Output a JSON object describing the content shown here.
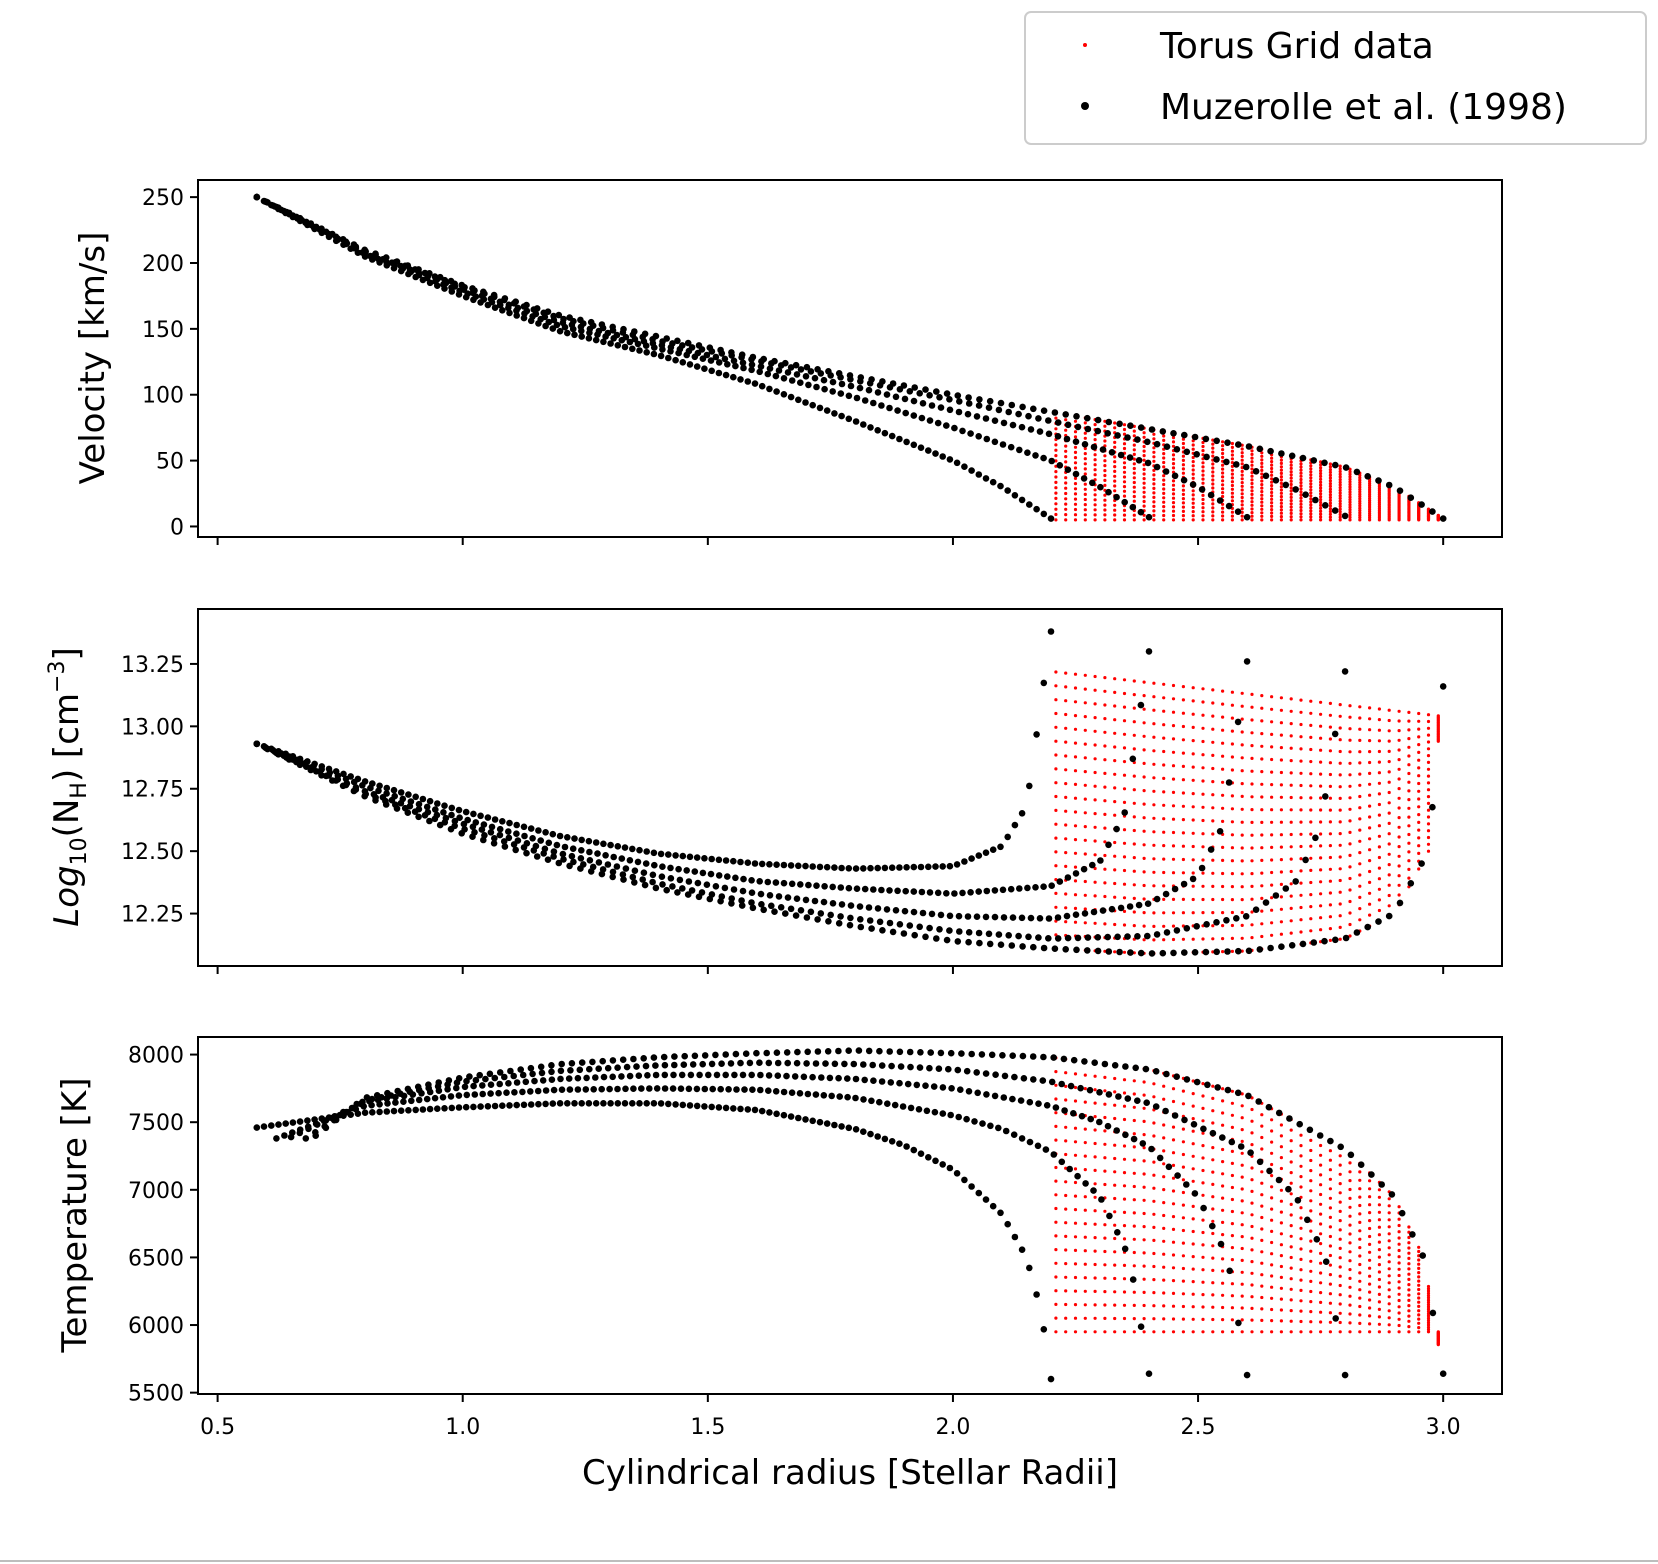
{
  "legend": {
    "entries": [
      {
        "label": "Torus Grid data",
        "color": "#ff0000",
        "marker": "small-dot"
      },
      {
        "label": "Muzerolle et al. (1998)",
        "color": "#000000",
        "marker": "dot"
      }
    ],
    "placement": "top-right, above panels"
  },
  "chart_data": [
    {
      "type": "scatter",
      "panel": "velocity",
      "ylabel": "Velocity [km/s]",
      "xlim": [
        0.46,
        3.12
      ],
      "ylim": [
        -8,
        263
      ],
      "xticks": [
        0.5,
        1.0,
        1.5,
        2.0,
        2.5,
        3.0
      ],
      "xtick_labels_shown": false,
      "yticks": [
        0,
        50,
        100,
        150,
        200,
        250
      ],
      "ytick_labels": [
        "0",
        "50",
        "100",
        "150",
        "200",
        "250"
      ],
      "grid": false,
      "muzerolle_curves": [
        {
          "r_out": 2.2,
          "points": [
            [
              0.58,
              250
            ],
            [
              0.8,
              205
            ],
            [
              1.0,
              175
            ],
            [
              1.2,
              148
            ],
            [
              1.4,
              130
            ],
            [
              1.6,
              108
            ],
            [
              1.8,
              80
            ],
            [
              2.0,
              50
            ],
            [
              2.1,
              30
            ],
            [
              2.2,
              6
            ]
          ]
        },
        {
          "r_out": 2.4,
          "points": [
            [
              0.58,
              250
            ],
            [
              0.8,
              207
            ],
            [
              1.0,
              178
            ],
            [
              1.2,
              152
            ],
            [
              1.4,
              135
            ],
            [
              1.6,
              118
            ],
            [
              1.8,
              98
            ],
            [
              2.0,
              75
            ],
            [
              2.2,
              50
            ],
            [
              2.3,
              30
            ],
            [
              2.4,
              7
            ]
          ]
        },
        {
          "r_out": 2.6,
          "points": [
            [
              0.58,
              250
            ],
            [
              0.8,
              208
            ],
            [
              1.0,
              180
            ],
            [
              1.2,
              155
            ],
            [
              1.4,
              138
            ],
            [
              1.6,
              122
            ],
            [
              1.8,
              106
            ],
            [
              2.0,
              88
            ],
            [
              2.2,
              70
            ],
            [
              2.4,
              48
            ],
            [
              2.5,
              30
            ],
            [
              2.6,
              7
            ]
          ]
        },
        {
          "r_out": 2.8,
          "points": [
            [
              0.58,
              250
            ],
            [
              0.8,
              209
            ],
            [
              1.0,
              182
            ],
            [
              1.2,
              158
            ],
            [
              1.4,
              141
            ],
            [
              1.6,
              126
            ],
            [
              1.8,
              111
            ],
            [
              2.0,
              96
            ],
            [
              2.2,
              80
            ],
            [
              2.4,
              64
            ],
            [
              2.6,
              45
            ],
            [
              2.7,
              28
            ],
            [
              2.8,
              8
            ]
          ]
        },
        {
          "r_out": 3.0,
          "points": [
            [
              0.58,
              250
            ],
            [
              0.8,
              210
            ],
            [
              1.0,
              183
            ],
            [
              1.2,
              160
            ],
            [
              1.4,
              144
            ],
            [
              1.6,
              128
            ],
            [
              1.8,
              114
            ],
            [
              2.0,
              100
            ],
            [
              2.2,
              87
            ],
            [
              2.4,
              74
            ],
            [
              2.6,
              61
            ],
            [
              2.8,
              45
            ],
            [
              2.9,
              30
            ],
            [
              3.0,
              6
            ]
          ]
        }
      ],
      "torus_grid": {
        "x_range": [
          2.2,
          3.0
        ],
        "y_bottom": 5,
        "fills_under_curves": true
      }
    },
    {
      "type": "scatter",
      "panel": "density",
      "ylabel": "Log10(NH) [cm-3]",
      "xlim": [
        0.46,
        3.12
      ],
      "ylim": [
        12.04,
        13.47
      ],
      "xticks": [
        0.5,
        1.0,
        1.5,
        2.0,
        2.5,
        3.0
      ],
      "xtick_labels_shown": false,
      "yticks": [
        12.25,
        12.5,
        12.75,
        13.0,
        13.25
      ],
      "ytick_labels": [
        "12.25",
        "12.50",
        "12.75",
        "13.00",
        "13.25"
      ],
      "grid": false,
      "muzerolle_curves": [
        {
          "r_out": 2.2,
          "points": [
            [
              0.58,
              12.93
            ],
            [
              0.8,
              12.78
            ],
            [
              1.0,
              12.66
            ],
            [
              1.2,
              12.56
            ],
            [
              1.4,
              12.49
            ],
            [
              1.6,
              12.45
            ],
            [
              1.8,
              12.43
            ],
            [
              2.0,
              12.44
            ],
            [
              2.1,
              12.52
            ],
            [
              2.15,
              12.68
            ],
            [
              2.2,
              13.38
            ]
          ]
        },
        {
          "r_out": 2.4,
          "points": [
            [
              0.58,
              12.93
            ],
            [
              0.8,
              12.76
            ],
            [
              1.0,
              12.63
            ],
            [
              1.2,
              12.52
            ],
            [
              1.4,
              12.44
            ],
            [
              1.6,
              12.38
            ],
            [
              1.8,
              12.35
            ],
            [
              2.0,
              12.33
            ],
            [
              2.2,
              12.36
            ],
            [
              2.3,
              12.46
            ],
            [
              2.35,
              12.65
            ],
            [
              2.4,
              13.3
            ]
          ]
        },
        {
          "r_out": 2.6,
          "points": [
            [
              0.58,
              12.93
            ],
            [
              0.8,
              12.74
            ],
            [
              1.0,
              12.61
            ],
            [
              1.2,
              12.49
            ],
            [
              1.4,
              12.4
            ],
            [
              1.6,
              12.33
            ],
            [
              1.8,
              12.28
            ],
            [
              2.0,
              12.24
            ],
            [
              2.2,
              12.23
            ],
            [
              2.4,
              12.29
            ],
            [
              2.5,
              12.4
            ],
            [
              2.55,
              12.6
            ],
            [
              2.6,
              13.26
            ]
          ]
        },
        {
          "r_out": 2.8,
          "points": [
            [
              0.58,
              12.93
            ],
            [
              0.8,
              12.73
            ],
            [
              1.0,
              12.59
            ],
            [
              1.2,
              12.47
            ],
            [
              1.4,
              12.37
            ],
            [
              1.6,
              12.29
            ],
            [
              1.8,
              12.23
            ],
            [
              2.0,
              12.18
            ],
            [
              2.2,
              12.15
            ],
            [
              2.4,
              12.16
            ],
            [
              2.6,
              12.24
            ],
            [
              2.7,
              12.38
            ],
            [
              2.75,
              12.6
            ],
            [
              2.8,
              13.22
            ]
          ]
        },
        {
          "r_out": 3.0,
          "points": [
            [
              0.58,
              12.93
            ],
            [
              0.8,
              12.72
            ],
            [
              1.0,
              12.57
            ],
            [
              1.2,
              12.45
            ],
            [
              1.4,
              12.35
            ],
            [
              1.6,
              12.27
            ],
            [
              1.8,
              12.2
            ],
            [
              2.0,
              12.14
            ],
            [
              2.2,
              12.11
            ],
            [
              2.4,
              12.09
            ],
            [
              2.6,
              12.1
            ],
            [
              2.8,
              12.15
            ],
            [
              2.9,
              12.25
            ],
            [
              2.97,
              12.5
            ],
            [
              3.0,
              13.16
            ]
          ]
        }
      ],
      "torus_grid": {
        "x_range": [
          2.2,
          3.0
        ],
        "y_top_left": 13.22,
        "y_top_right": 13.04,
        "y_bottom": 12.09
      }
    },
    {
      "type": "scatter",
      "panel": "temperature",
      "ylabel": "Temperature [K]",
      "xlabel": "Cylindrical radius [Stellar Radii]",
      "xlim": [
        0.46,
        3.12
      ],
      "ylim": [
        5490,
        8130
      ],
      "xticks": [
        0.5,
        1.0,
        1.5,
        2.0,
        2.5,
        3.0
      ],
      "xtick_labels": [
        "0.5",
        "1.0",
        "1.5",
        "2.0",
        "2.5",
        "3.0"
      ],
      "yticks": [
        5500,
        6000,
        6500,
        7000,
        7500,
        8000
      ],
      "ytick_labels": [
        "5500",
        "6000",
        "6500",
        "7000",
        "7500",
        "8000"
      ],
      "grid": false,
      "muzerolle_curves": [
        {
          "r_out": 2.2,
          "points": [
            [
              0.58,
              7460
            ],
            [
              0.8,
              7570
            ],
            [
              1.0,
              7610
            ],
            [
              1.2,
              7640
            ],
            [
              1.4,
              7640
            ],
            [
              1.6,
              7590
            ],
            [
              1.8,
              7450
            ],
            [
              1.9,
              7330
            ],
            [
              2.0,
              7150
            ],
            [
              2.1,
              6820
            ],
            [
              2.15,
              6500
            ],
            [
              2.18,
              6100
            ],
            [
              2.2,
              5600
            ]
          ]
        },
        {
          "r_out": 2.4,
          "points": [
            [
              0.62,
              7380
            ],
            [
              0.8,
              7620
            ],
            [
              1.0,
              7700
            ],
            [
              1.2,
              7740
            ],
            [
              1.4,
              7750
            ],
            [
              1.6,
              7740
            ],
            [
              1.8,
              7680
            ],
            [
              2.0,
              7550
            ],
            [
              2.1,
              7450
            ],
            [
              2.2,
              7280
            ],
            [
              2.3,
              6950
            ],
            [
              2.36,
              6500
            ],
            [
              2.4,
              5640
            ]
          ]
        },
        {
          "r_out": 2.6,
          "points": [
            [
              0.65,
              7390
            ],
            [
              0.8,
              7650
            ],
            [
              1.0,
              7760
            ],
            [
              1.2,
              7820
            ],
            [
              1.4,
              7850
            ],
            [
              1.6,
              7850
            ],
            [
              1.8,
              7820
            ],
            [
              2.0,
              7750
            ],
            [
              2.2,
              7620
            ],
            [
              2.3,
              7500
            ],
            [
              2.4,
              7320
            ],
            [
              2.5,
              6950
            ],
            [
              2.56,
              6500
            ],
            [
              2.6,
              5630
            ]
          ]
        },
        {
          "r_out": 2.8,
          "points": [
            [
              0.68,
              7380
            ],
            [
              0.8,
              7660
            ],
            [
              1.0,
              7800
            ],
            [
              1.2,
              7880
            ],
            [
              1.4,
              7920
            ],
            [
              1.6,
              7940
            ],
            [
              1.8,
              7930
            ],
            [
              2.0,
              7890
            ],
            [
              2.2,
              7800
            ],
            [
              2.4,
              7640
            ],
            [
              2.6,
              7300
            ],
            [
              2.7,
              6950
            ],
            [
              2.76,
              6500
            ],
            [
              2.8,
              5630
            ]
          ]
        },
        {
          "r_out": 3.0,
          "points": [
            [
              0.7,
              7400
            ],
            [
              0.8,
              7680
            ],
            [
              1.0,
              7830
            ],
            [
              1.2,
              7930
            ],
            [
              1.4,
              7980
            ],
            [
              1.6,
              8010
            ],
            [
              1.8,
              8030
            ],
            [
              2.0,
              8010
            ],
            [
              2.2,
              7980
            ],
            [
              2.4,
              7890
            ],
            [
              2.6,
              7700
            ],
            [
              2.8,
              7300
            ],
            [
              2.9,
              6950
            ],
            [
              2.96,
              6500
            ],
            [
              3.0,
              5640
            ]
          ]
        }
      ],
      "torus_grid": {
        "x_range": [
          2.2,
          3.0
        ],
        "y_bottom": 5950
      }
    }
  ]
}
